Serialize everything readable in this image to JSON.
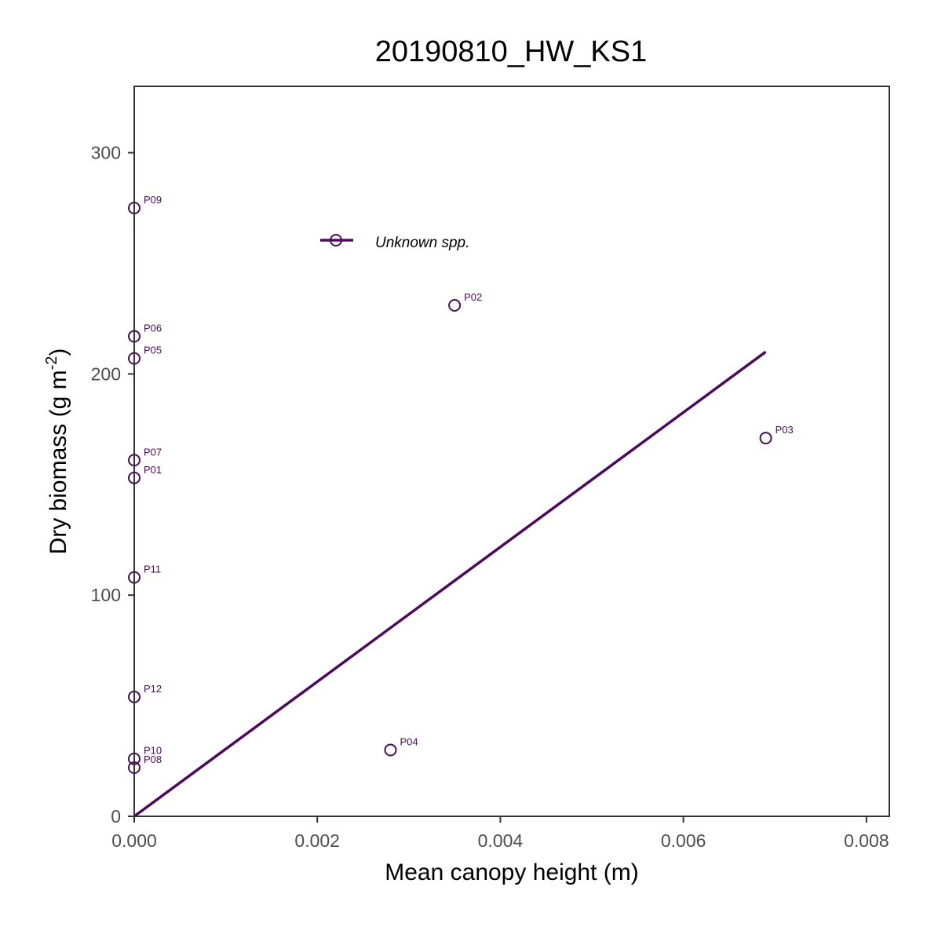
{
  "chart_data": {
    "type": "scatter",
    "title": "20190810_HW_KS1",
    "xlabel": "Mean canopy height (m)",
    "ylabel": {
      "base": "Dry biomass (g m",
      "superscript": "-2",
      "close": ")"
    },
    "xlim": [
      0,
      0.00825
    ],
    "ylim": [
      0,
      330
    ],
    "xticks": [
      0,
      0.002,
      0.004,
      0.006,
      0.008
    ],
    "xtick_labels": [
      "0.000",
      "0.002",
      "0.004",
      "0.006",
      "0.008"
    ],
    "yticks": [
      0,
      100,
      200,
      300
    ],
    "ytick_labels": [
      "0",
      "100",
      "200",
      "300"
    ],
    "grid": false,
    "legend": {
      "position": "top-left",
      "label": "Unknown spp."
    },
    "series": [
      {
        "name": "Unknown spp.",
        "color": "#4b0a5c",
        "points": [
          {
            "label": "P01",
            "x": 0.0,
            "y": 153
          },
          {
            "label": "P02",
            "x": 0.0035,
            "y": 231
          },
          {
            "label": "P03",
            "x": 0.0069,
            "y": 171
          },
          {
            "label": "P04",
            "x": 0.0028,
            "y": 30
          },
          {
            "label": "P05",
            "x": 0.0,
            "y": 207
          },
          {
            "label": "P06",
            "x": 0.0,
            "y": 217
          },
          {
            "label": "P07",
            "x": 0.0,
            "y": 161
          },
          {
            "label": "P08",
            "x": 0.0,
            "y": 22
          },
          {
            "label": "P09",
            "x": 0.0,
            "y": 275
          },
          {
            "label": "P10",
            "x": 0.0,
            "y": 26
          },
          {
            "label": "P11",
            "x": 0.0,
            "y": 108
          },
          {
            "label": "P12",
            "x": 0.0,
            "y": 54
          }
        ],
        "fit_line": {
          "x": [
            0,
            0.0069
          ],
          "y": [
            0,
            210
          ]
        }
      }
    ]
  }
}
